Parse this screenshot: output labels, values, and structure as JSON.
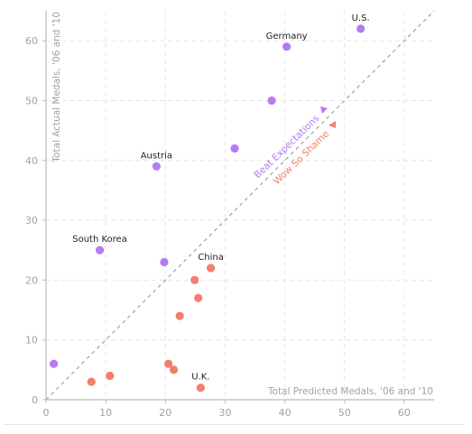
{
  "chart_data": {
    "type": "scatter",
    "xlabel": "Total Predicted Medals, '06 and '10",
    "ylabel": "Total Actual Medals, '06 and '10",
    "xlim": [
      0,
      65
    ],
    "ylim": [
      0,
      65
    ],
    "xticks": [
      "0",
      "10",
      "20",
      "30",
      "40",
      "50",
      "60"
    ],
    "yticks": [
      "0",
      "10",
      "20",
      "30",
      "40",
      "50",
      "60"
    ],
    "grid": true,
    "reference_line": "y = x",
    "zones": {
      "above": {
        "label": "Beat Expectations",
        "color": "#b57bf2"
      },
      "below": {
        "label": "Wow So Shame",
        "color": "#f47e6e"
      }
    },
    "series": [
      {
        "group": "above",
        "color": "#b57bf2",
        "points": [
          {
            "x": 52.7,
            "y": 62,
            "label": "U.S."
          },
          {
            "x": 40.3,
            "y": 59,
            "label": "Germany"
          },
          {
            "x": 37.8,
            "y": 50,
            "label": ""
          },
          {
            "x": 31.6,
            "y": 42,
            "label": ""
          },
          {
            "x": 18.5,
            "y": 39,
            "label": "Austria"
          },
          {
            "x": 9.0,
            "y": 25,
            "label": "South Korea"
          },
          {
            "x": 19.8,
            "y": 23,
            "label": ""
          },
          {
            "x": 1.3,
            "y": 6,
            "label": ""
          }
        ]
      },
      {
        "group": "below",
        "color": "#f47e6e",
        "points": [
          {
            "x": 27.6,
            "y": 22,
            "label": "China"
          },
          {
            "x": 24.9,
            "y": 20,
            "label": ""
          },
          {
            "x": 25.5,
            "y": 17,
            "label": ""
          },
          {
            "x": 22.4,
            "y": 14,
            "label": ""
          },
          {
            "x": 20.5,
            "y": 6,
            "label": ""
          },
          {
            "x": 21.4,
            "y": 5,
            "label": ""
          },
          {
            "x": 10.7,
            "y": 4,
            "label": ""
          },
          {
            "x": 7.6,
            "y": 3,
            "label": ""
          },
          {
            "x": 25.9,
            "y": 2,
            "label": "U.K."
          }
        ]
      }
    ]
  }
}
